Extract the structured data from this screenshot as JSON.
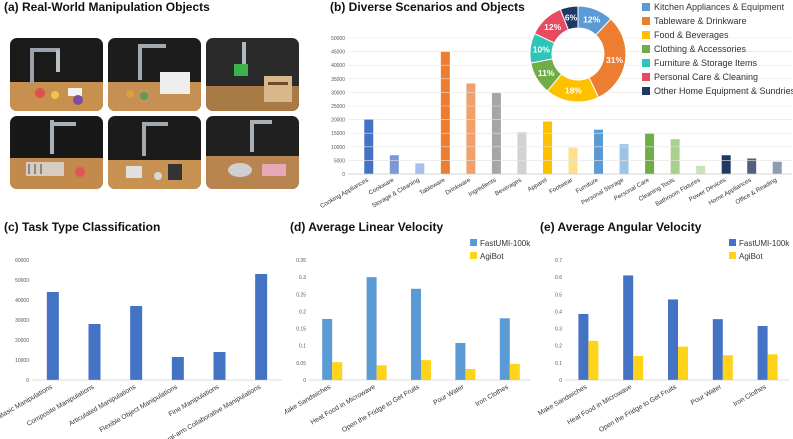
{
  "panels": {
    "a_title": "(a) Real-World Manipulation Objects",
    "b_title": "(b) Diverse Scenarios and Objects",
    "c_title": "(c) Task Type Classification",
    "d_title": "(d) Average Linear Velocity",
    "e_title": "(e) Average Angular Velocity"
  },
  "photos": [
    {
      "scene": "robot arm with fruits and dishes on wooden table"
    },
    {
      "scene": "robot arm with appliance and cups"
    },
    {
      "scene": "robot arm grasping green object above wooden cabinet"
    },
    {
      "scene": "dual robot arms with dish rack"
    },
    {
      "scene": "robot arm with cooking utensils"
    },
    {
      "scene": "robot arm folding clothes"
    }
  ],
  "chart_data": [
    {
      "id": "b",
      "type": "bar",
      "title": "(b) Diverse Scenarios and Objects",
      "categories": [
        "Cooking Appliances",
        "Cookware",
        "Storage & Cleaning",
        "Tableware",
        "Drinkware",
        "Ingredients",
        "Beverages",
        "Apparel",
        "Footwear",
        "Furniture",
        "Personal Storage",
        "Personal Care",
        "Cleaning Tools",
        "Bathroom Fixtures",
        "Power Devices",
        "Home Appliances",
        "Office & Reading"
      ],
      "values": [
        20200,
        6900,
        3900,
        45000,
        33300,
        29800,
        15400,
        19300,
        9700,
        16300,
        11000,
        14800,
        12800,
        3000,
        6900,
        5700,
        4500
      ],
      "colors": [
        "#4472C4",
        "#7B97D6",
        "#A9BEE8",
        "#ED7D31",
        "#F2A06A",
        "#A6A6A6",
        "#D2D2D2",
        "#FFC000",
        "#FFE08A",
        "#5B9BD5",
        "#9DC3E6",
        "#70AD47",
        "#A9D18E",
        "#C9E3B8",
        "#1F3864",
        "#51607F",
        "#8F9BB3"
      ],
      "yticks": [
        0,
        5000,
        10000,
        15000,
        20000,
        25000,
        30000,
        35000,
        40000,
        45000,
        50000
      ],
      "ylim": [
        0,
        50000
      ]
    },
    {
      "id": "b_pie",
      "type": "pie",
      "labels": [
        "Kitchen Appliances & Equipment",
        "Tableware & Drinkware",
        "Food & Beverages",
        "Clothing & Accessories",
        "Furniture & Storage Items",
        "Personal Care & Cleaning",
        "Other Home Equipment & Sundries"
      ],
      "values": [
        12,
        31,
        18,
        11,
        10,
        12,
        6
      ],
      "value_labels": [
        "12%",
        "31%",
        "18%",
        "11%",
        "10%",
        "12%",
        "6%"
      ],
      "colors": [
        "#5B9BD5",
        "#ED7D31",
        "#FFC000",
        "#70AD47",
        "#2EC4B6",
        "#E84A5F",
        "#1F3864"
      ]
    },
    {
      "id": "c",
      "type": "bar",
      "title": "(c) Task Type Classification",
      "categories": [
        "Basic Manipulations",
        "Composite Manipulations",
        "Articulated Manipulations",
        "Flexible Object Manipulations",
        "Fine Manipulations",
        "Dual-arm Collaborative Manipulations"
      ],
      "values": [
        44000,
        28000,
        37000,
        11500,
        14000,
        53000
      ],
      "color": "#4472C4",
      "yticks": [
        0,
        10000,
        20000,
        30000,
        40000,
        50000,
        60000
      ],
      "ylim": [
        0,
        60000
      ]
    },
    {
      "id": "d",
      "type": "bar",
      "title": "(d) Average Linear Velocity",
      "categories": [
        "Make Sandwiches",
        "Heat Food in Microwave",
        "Open the Fridge to Get Fruits",
        "Pour Water",
        "Iron Clothes"
      ],
      "series": [
        {
          "name": "FastUMI-100k",
          "color": "#5B9BD5",
          "values": [
            0.178,
            0.3,
            0.266,
            0.108,
            0.18
          ]
        },
        {
          "name": "AgiBot",
          "color": "#FFD319",
          "values": [
            0.052,
            0.043,
            0.058,
            0.032,
            0.047
          ]
        }
      ],
      "yticks": [
        0,
        0.05,
        0.1,
        0.15,
        0.2,
        0.25,
        0.3,
        0.35
      ],
      "ylim": [
        0,
        0.35
      ]
    },
    {
      "id": "e",
      "type": "bar",
      "title": "(e) Average Angular Velocity",
      "categories": [
        "Make Sandwiches",
        "Heat Food in Microwave",
        "Open the Fridge to Get Fruits",
        "Pour Water",
        "Iron Clothes"
      ],
      "series": [
        {
          "name": "FastUMI-100k",
          "color": "#4472C4",
          "values": [
            0.385,
            0.61,
            0.47,
            0.355,
            0.315
          ]
        },
        {
          "name": "AgiBot",
          "color": "#FFD319",
          "values": [
            0.228,
            0.14,
            0.195,
            0.145,
            0.15
          ]
        }
      ],
      "yticks": [
        0,
        0.1,
        0.2,
        0.3,
        0.4,
        0.5,
        0.6,
        0.7
      ],
      "ylim": [
        0,
        0.7
      ]
    }
  ]
}
